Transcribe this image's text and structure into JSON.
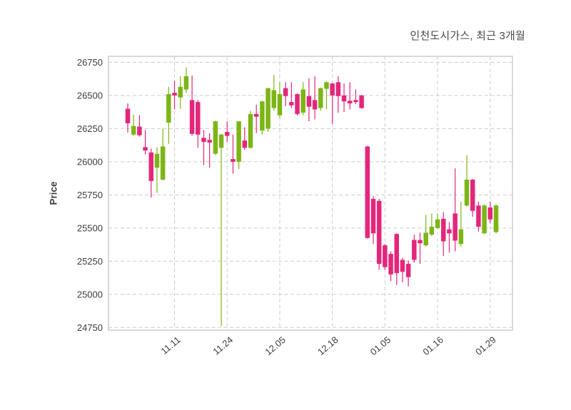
{
  "title": "인천도시가스, 최근 3개월",
  "ylabel": "Price",
  "chart_data": {
    "type": "candlestick",
    "title": "인천도시가스, 최근 3개월",
    "ylabel": "Price",
    "xlabel": "",
    "grid": true,
    "grid_style": "dashed",
    "ylim": [
      24730,
      26795
    ],
    "y_ticks": [
      24750,
      25000,
      25250,
      25500,
      25750,
      26000,
      26250,
      26500,
      26750
    ],
    "x_tick_labels": [
      "11.11",
      "11.24",
      "12.05",
      "12.18",
      "01.05",
      "01.16",
      "01.29"
    ],
    "x_tick_candle_indices": [
      8,
      17,
      26,
      35,
      44,
      53,
      62
    ],
    "colors": {
      "up": "#7CB516",
      "down": "#E4267B",
      "grid": "#cccccc",
      "spine": "#d9d9d9",
      "tick_text": "#3d3d3d",
      "title_text": "#4a4a4a",
      "background": "#ffffff"
    },
    "ohlc": [
      [
        26400,
        26440,
        26220,
        26290
      ],
      [
        26205,
        26355,
        26195,
        26270
      ],
      [
        26265,
        26350,
        26190,
        26200
      ],
      [
        26110,
        26240,
        26055,
        26085
      ],
      [
        26070,
        26100,
        25730,
        25855
      ],
      [
        25955,
        26110,
        25765,
        26060
      ],
      [
        25865,
        26250,
        25860,
        26115
      ],
      [
        26295,
        26565,
        26135,
        26510
      ],
      [
        26520,
        26610,
        26395,
        26500
      ],
      [
        26485,
        26645,
        26400,
        26565
      ],
      [
        26545,
        26710,
        26520,
        26645
      ],
      [
        26465,
        26650,
        26195,
        26210
      ],
      [
        26450,
        26465,
        26105,
        26205
      ],
      [
        26180,
        26240,
        25975,
        26150
      ],
      [
        26165,
        26215,
        25955,
        26145
      ],
      [
        26060,
        26310,
        26050,
        26305
      ],
      [
        26105,
        26210,
        24760,
        26205
      ],
      [
        26225,
        26305,
        26150,
        26195
      ],
      [
        26020,
        26205,
        25910,
        26000
      ],
      [
        26000,
        26305,
        25945,
        26305
      ],
      [
        26160,
        26260,
        26090,
        26105
      ],
      [
        26105,
        26385,
        26100,
        26360
      ],
      [
        26360,
        26430,
        26215,
        26340
      ],
      [
        26235,
        26460,
        26205,
        26455
      ],
      [
        26250,
        26555,
        26225,
        26555
      ],
      [
        26405,
        26655,
        26385,
        26540
      ],
      [
        26350,
        26600,
        26330,
        26510
      ],
      [
        26555,
        26600,
        26420,
        26495
      ],
      [
        26450,
        26600,
        26405,
        26425
      ],
      [
        26510,
        26515,
        26350,
        26360
      ],
      [
        26370,
        26600,
        26350,
        26545
      ],
      [
        26495,
        26630,
        26305,
        26415
      ],
      [
        26465,
        26645,
        26320,
        26395
      ],
      [
        26405,
        26560,
        26385,
        26555
      ],
      [
        26550,
        26605,
        26395,
        26600
      ],
      [
        26590,
        26595,
        26285,
        26500
      ],
      [
        26600,
        26645,
        26370,
        26495
      ],
      [
        26500,
        26590,
        26375,
        26455
      ],
      [
        26460,
        26600,
        26395,
        26440
      ],
      [
        26465,
        26545,
        26435,
        26450
      ],
      [
        26500,
        26505,
        26400,
        26405
      ],
      [
        26115,
        26120,
        25420,
        25425
      ],
      [
        25720,
        25740,
        25380,
        25460
      ],
      [
        25705,
        25720,
        25185,
        25230
      ],
      [
        25370,
        25380,
        25185,
        25205
      ],
      [
        25305,
        25325,
        25100,
        25150
      ],
      [
        25455,
        25460,
        25070,
        25160
      ],
      [
        25260,
        25275,
        25090,
        25170
      ],
      [
        25230,
        25255,
        25060,
        25130
      ],
      [
        25410,
        25450,
        25240,
        25260
      ],
      [
        25410,
        25465,
        25230,
        25385
      ],
      [
        25370,
        25600,
        25360,
        25465
      ],
      [
        25450,
        25610,
        25440,
        25510
      ],
      [
        25500,
        25610,
        25495,
        25565
      ],
      [
        25570,
        25620,
        25290,
        25400
      ],
      [
        25490,
        25545,
        25315,
        25460
      ],
      [
        25610,
        25950,
        25325,
        25405
      ],
      [
        25380,
        25700,
        25360,
        25490
      ],
      [
        25670,
        26050,
        25660,
        25865
      ],
      [
        25865,
        25870,
        25585,
        25630
      ],
      [
        25670,
        25700,
        25475,
        25510
      ],
      [
        25460,
        25680,
        25455,
        25670
      ],
      [
        25655,
        25700,
        25535,
        25565
      ],
      [
        25470,
        25680,
        25460,
        25670
      ]
    ]
  }
}
